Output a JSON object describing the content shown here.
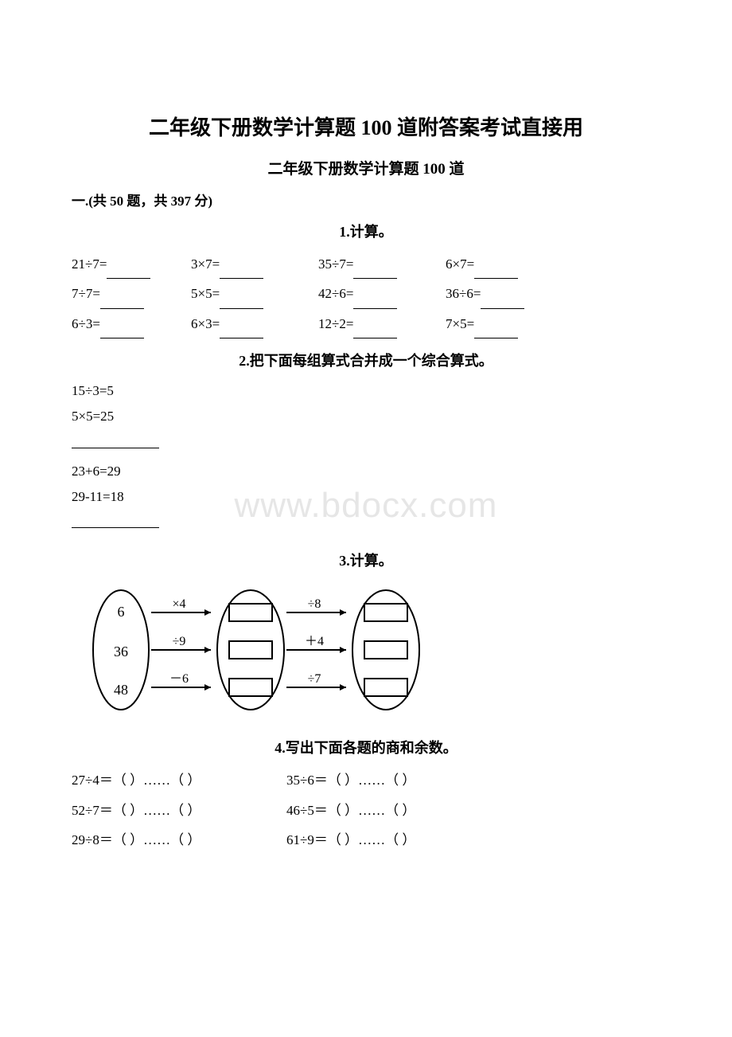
{
  "main_title": "二年级下册数学计算题 100 道附答案考试直接用",
  "sub_title": "二年级下册数学计算题 100 道",
  "section_info": "一.(共 50 题，共 397 分)",
  "watermark": "www.bdocx.com",
  "q1": {
    "title": "1.计算。",
    "rows": [
      [
        "21÷7=",
        "3×7=",
        "35÷7=",
        "6×7="
      ],
      [
        "7÷7=",
        "5×5=",
        "42÷6=",
        "36÷6="
      ],
      [
        "6÷3=",
        "6×3=",
        "12÷2=",
        "7×5="
      ]
    ]
  },
  "q2": {
    "title": "2.把下面每组算式合并成一个综合算式。",
    "group1": [
      "15÷3=5",
      "5×5=25"
    ],
    "group2": [
      "23+6=29",
      "29-11=18"
    ]
  },
  "q3": {
    "title": "3.计算。",
    "inputs": [
      "6",
      "36",
      "48"
    ],
    "ops1": [
      "×4",
      "÷9",
      "－6"
    ],
    "ops2": [
      "÷8",
      "＋4",
      "÷7"
    ],
    "colors": {
      "stroke": "#000000",
      "fill": "#ffffff"
    }
  },
  "q4": {
    "title": "4.写出下面各题的商和余数。",
    "rows": [
      [
        "27÷4＝（  ）……（  ）",
        "35÷6＝（  ）……（  ）"
      ],
      [
        "52÷7＝（  ）……（  ）",
        "46÷5＝（  ）……（  ）"
      ],
      [
        "29÷8＝（  ）……（  ）",
        "61÷9＝（  ）……（  ）"
      ]
    ]
  }
}
